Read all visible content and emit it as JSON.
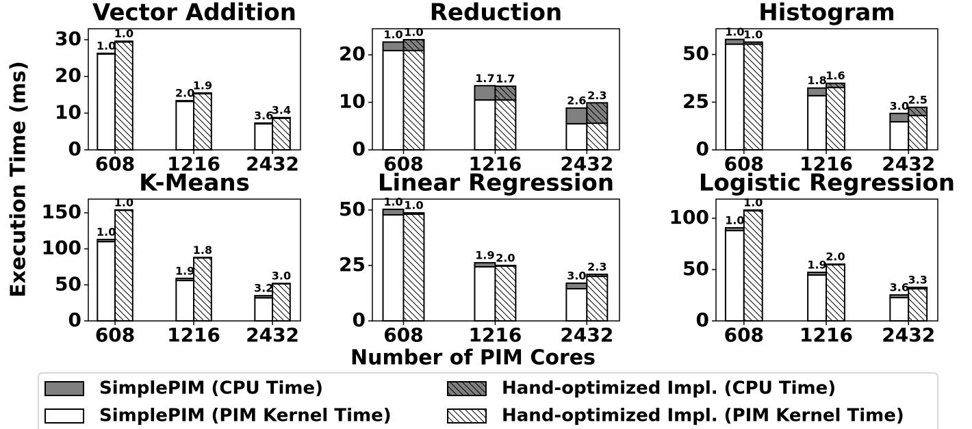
{
  "figure": {
    "xlabel": "Number of PIM Cores",
    "ylabel": "Execution Time (ms)",
    "legend": "bottom",
    "series": [
      {
        "name": "SimplePIM (PIM Kernel Time)",
        "color": "#ffffff",
        "hatch": false,
        "stack": 0
      },
      {
        "name": "SimplePIM (CPU Time)",
        "color": "#808080",
        "hatch": false,
        "stack": 0
      },
      {
        "name": "Hand-optimized Impl. (PIM Kernel Time)",
        "color": "#ffffff",
        "hatch": true,
        "stack": 1
      },
      {
        "name": "Hand-optimized Impl. (CPU Time)",
        "color": "#808080",
        "hatch": true,
        "stack": 1
      }
    ]
  },
  "chart_data": [
    {
      "type": "bar",
      "title": "Vector Addition",
      "categories": [
        "608",
        "1216",
        "2432"
      ],
      "ylim": [
        0,
        33
      ],
      "yticks": [
        0,
        10,
        20,
        30
      ],
      "series": [
        {
          "values": [
            26.1,
            13.2,
            7.1
          ]
        },
        {
          "values": [
            0.2,
            0.2,
            0.2
          ]
        },
        {
          "values": [
            29.4,
            15.3,
            8.6
          ]
        },
        {
          "values": [
            0.2,
            0.2,
            0.2
          ]
        }
      ],
      "top_labels": [
        [
          "1.0",
          "2.0",
          "3.6"
        ],
        [
          "1.0",
          "1.9",
          "3.4"
        ]
      ]
    },
    {
      "type": "bar",
      "title": "Reduction",
      "categories": [
        "608",
        "1216",
        "2432"
      ],
      "ylim": [
        0,
        25.5
      ],
      "yticks": [
        0,
        10,
        20
      ],
      "series": [
        {
          "values": [
            20.9,
            10.5,
            5.5
          ]
        },
        {
          "values": [
            1.8,
            3.0,
            3.3
          ]
        },
        {
          "values": [
            20.9,
            10.5,
            5.6
          ]
        },
        {
          "values": [
            2.3,
            2.9,
            4.3
          ]
        }
      ],
      "top_labels": [
        [
          "1.0",
          "1.7",
          "2.6"
        ],
        [
          "1.0",
          "1.7",
          "2.3"
        ]
      ]
    },
    {
      "type": "bar",
      "title": "Histogram",
      "categories": [
        "608",
        "1216",
        "2432"
      ],
      "ylim": [
        0,
        63.5
      ],
      "yticks": [
        0,
        25,
        50
      ],
      "series": [
        {
          "values": [
            55.4,
            28.4,
            14.7
          ]
        },
        {
          "values": [
            2.5,
            4.0,
            4.4
          ]
        },
        {
          "values": [
            55.4,
            32.7,
            18.0
          ]
        },
        {
          "values": [
            1.1,
            2.2,
            4.3
          ]
        }
      ],
      "top_labels": [
        [
          "1.0",
          "1.8",
          "3.0"
        ],
        [
          "1.0",
          "1.6",
          "2.5"
        ]
      ]
    },
    {
      "type": "bar",
      "title": "K-Means",
      "categories": [
        "608",
        "1216",
        "2432"
      ],
      "ylim": [
        0,
        169
      ],
      "yticks": [
        0,
        50,
        100,
        150
      ],
      "series": [
        {
          "values": [
            110,
            56,
            32
          ]
        },
        {
          "values": [
            3,
            3,
            3
          ]
        },
        {
          "values": [
            153.5,
            87.5,
            51.5
          ]
        },
        {
          "values": [
            0.5,
            0.5,
            0.5
          ]
        }
      ],
      "top_labels": [
        [
          "1.0",
          "1.9",
          "3.2"
        ],
        [
          "1.0",
          "1.8",
          "3.0"
        ]
      ]
    },
    {
      "type": "bar",
      "title": "Linear Regression",
      "categories": [
        "608",
        "1216",
        "2432"
      ],
      "ylim": [
        0,
        54.9
      ],
      "yticks": [
        0,
        25,
        50
      ],
      "series": [
        {
          "values": [
            47.8,
            24.4,
            14.5
          ]
        },
        {
          "values": [
            2.5,
            1.8,
            2.5
          ]
        },
        {
          "values": [
            48.1,
            24.7,
            20.1
          ]
        },
        {
          "values": [
            0.6,
            0.3,
            0.9
          ]
        }
      ],
      "top_labels": [
        [
          "1.0",
          "1.9",
          "3.0"
        ],
        [
          "1.0",
          "2.0",
          "2.3"
        ]
      ]
    },
    {
      "type": "bar",
      "title": "Logistic Regression",
      "categories": [
        "608",
        "1216",
        "2432"
      ],
      "ylim": [
        0,
        118.7
      ],
      "yticks": [
        0,
        50,
        100
      ],
      "series": [
        {
          "values": [
            88,
            44.7,
            22.7
          ]
        },
        {
          "values": [
            2.7,
            2.6,
            2.6
          ]
        },
        {
          "values": [
            107.3,
            54.8,
            31.3
          ]
        },
        {
          "values": [
            0.7,
            0.5,
            1.4
          ]
        }
      ],
      "top_labels": [
        [
          "1.0",
          "1.9",
          "3.6"
        ],
        [
          "1.0",
          "2.0",
          "3.3"
        ]
      ]
    }
  ]
}
